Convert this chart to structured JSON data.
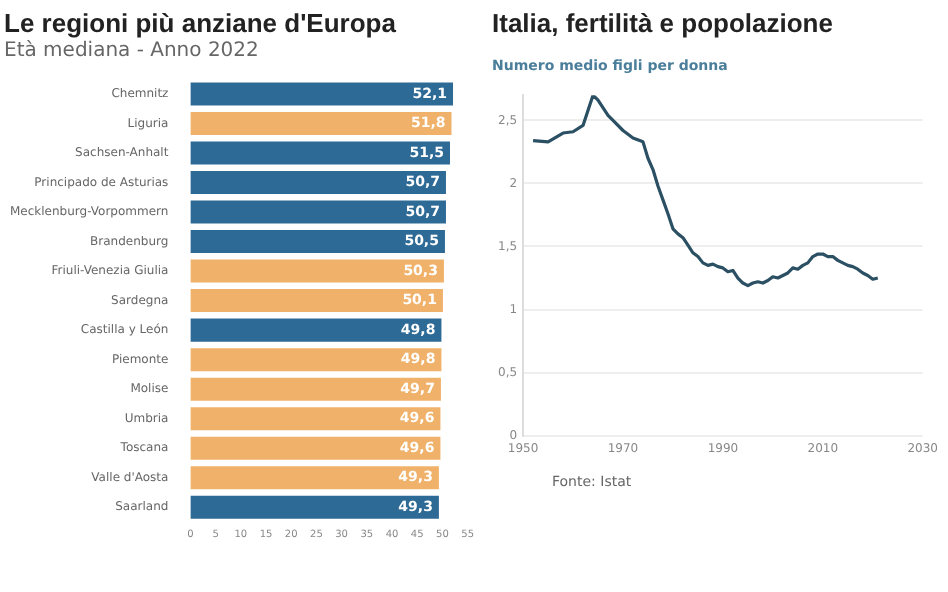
{
  "chart_data": [
    {
      "type": "bar",
      "title": "Le regioni più anziane d'Europa",
      "subtitle": "Età mediana - Anno 2022",
      "orientation": "horizontal",
      "categories": [
        "Chemnitz",
        "Liguria",
        "Sachsen-Anhalt",
        "Principado de Asturias",
        "Mecklenburg-Vorpommern",
        "Brandenburg",
        "Friuli-Venezia Giulia",
        "Sardegna",
        "Castilla y León",
        "Piemonte",
        "Molise",
        "Umbria",
        "Toscana",
        "Valle d'Aosta",
        "Saarland"
      ],
      "values": [
        52.1,
        51.8,
        51.5,
        50.7,
        50.7,
        50.5,
        50.3,
        50.1,
        49.8,
        49.8,
        49.7,
        49.6,
        49.6,
        49.3,
        49.3
      ],
      "colors": [
        "#2e6a96",
        "#f0b26a",
        "#2e6a96",
        "#2e6a96",
        "#2e6a96",
        "#2e6a96",
        "#f0b26a",
        "#f0b26a",
        "#2e6a96",
        "#f0b26a",
        "#f0b26a",
        "#f0b26a",
        "#f0b26a",
        "#f0b26a",
        "#2e6a96"
      ],
      "value_labels": [
        "52,1",
        "51,8",
        "51,5",
        "50,7",
        "50,7",
        "50,5",
        "50,3",
        "50,1",
        "49,8",
        "49,8",
        "49,7",
        "49,6",
        "49,6",
        "49,3",
        "49,3"
      ],
      "xlim": [
        0,
        55
      ],
      "xticks": [
        0,
        5,
        10,
        15,
        20,
        25,
        30,
        35,
        40,
        45,
        50,
        55
      ],
      "grid": false
    },
    {
      "type": "line",
      "title": "Italia, fertilità e popolazione",
      "subtitle": "Numero medio figli per donna",
      "color": "#2b4f63",
      "x": [
        1952,
        1955,
        1958,
        1960,
        1962,
        1964,
        1965,
        1967,
        1968,
        1970,
        1972,
        1974,
        1975,
        1976,
        1977,
        1978,
        1979,
        1980,
        1981,
        1982,
        1983,
        1984,
        1985,
        1986,
        1987,
        1988,
        1989,
        1990,
        1991,
        1992,
        1993,
        1994,
        1995,
        1996,
        1997,
        1998,
        1999,
        2000,
        2001,
        2002,
        2003,
        2004,
        2005,
        2006,
        2007,
        2008,
        2009,
        2010,
        2011,
        2012,
        2013,
        2014,
        2015,
        2016,
        2017,
        2018,
        2019,
        2020,
        2021
      ],
      "values": [
        2.34,
        2.33,
        2.4,
        2.41,
        2.46,
        2.7,
        2.66,
        2.54,
        2.5,
        2.42,
        2.36,
        2.33,
        2.2,
        2.11,
        1.98,
        1.87,
        1.76,
        1.64,
        1.6,
        1.57,
        1.51,
        1.45,
        1.42,
        1.37,
        1.35,
        1.36,
        1.34,
        1.33,
        1.3,
        1.31,
        1.25,
        1.21,
        1.19,
        1.21,
        1.22,
        1.21,
        1.23,
        1.26,
        1.25,
        1.27,
        1.29,
        1.33,
        1.32,
        1.35,
        1.37,
        1.42,
        1.44,
        1.44,
        1.42,
        1.42,
        1.39,
        1.37,
        1.35,
        1.34,
        1.32,
        1.29,
        1.27,
        1.24,
        1.25
      ],
      "xlim": [
        1950,
        2030
      ],
      "xticks": [
        1950,
        1970,
        1990,
        2010,
        2030
      ],
      "ylim": [
        0,
        2.7
      ],
      "yticks": [
        0,
        {
          "value": 0.5,
          "label": "0,5"
        },
        1,
        {
          "value": 1.5,
          "label": "1,5"
        },
        2,
        {
          "value": 2.5,
          "label": "2,5"
        }
      ],
      "grid": "y",
      "marker": "none",
      "annotations": [
        "Fonte: Istat"
      ]
    }
  ]
}
